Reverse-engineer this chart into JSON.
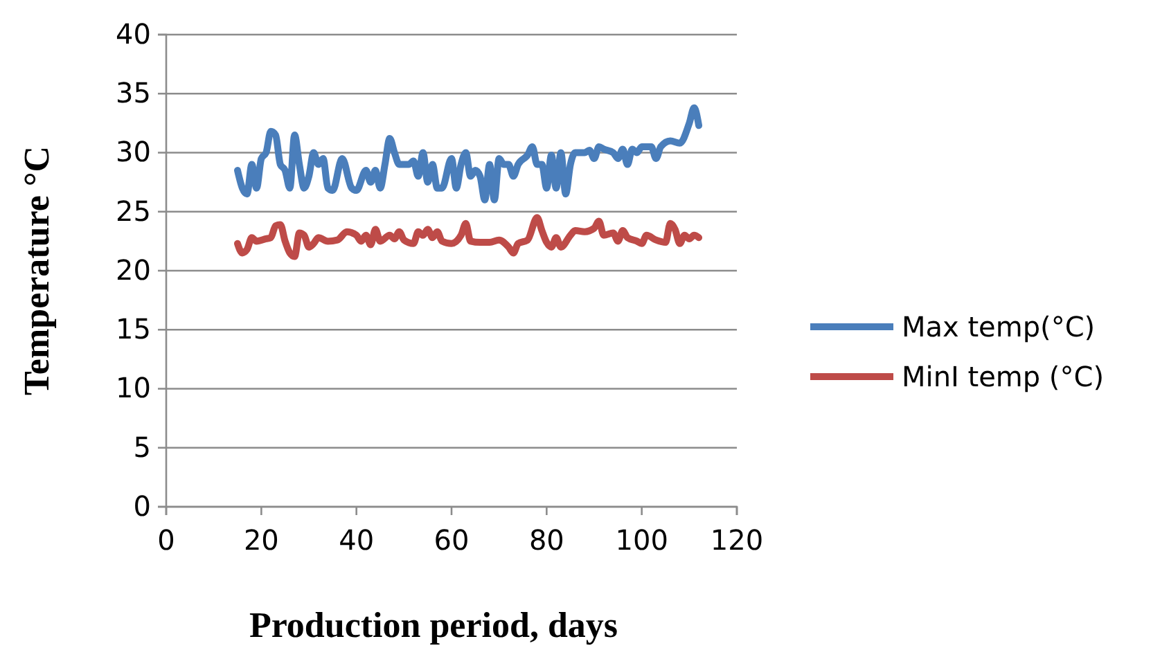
{
  "chart_data": {
    "type": "line",
    "xlabel": "Production period, days",
    "ylabel": "Temperature °C",
    "xlim": [
      0,
      120
    ],
    "xticks": [
      0,
      20,
      40,
      60,
      80,
      100,
      120
    ],
    "ylim": [
      0,
      40
    ],
    "yticks": [
      0,
      5,
      10,
      15,
      20,
      25,
      30,
      35,
      40
    ],
    "grid": "y",
    "legend": "right",
    "marker": "none",
    "line_style": "solid",
    "series": [
      {
        "name": "Max temp(°C)",
        "color": "#4a7ebb",
        "x": [
          15,
          16,
          17,
          18,
          19,
          20,
          21,
          22,
          23,
          24,
          25,
          26,
          27,
          28,
          29,
          30,
          31,
          32,
          33,
          34,
          35,
          37,
          39,
          40,
          42,
          43,
          44,
          45,
          46,
          47,
          48,
          49,
          51,
          52,
          53,
          54,
          55,
          56,
          57,
          58,
          60,
          61,
          62,
          63,
          64,
          65,
          66,
          67,
          68,
          69,
          70,
          71,
          72,
          73,
          74,
          76,
          77,
          78,
          79,
          80,
          81,
          82,
          83,
          84,
          85,
          86,
          88,
          89,
          90,
          91,
          92,
          94,
          95,
          96,
          97,
          98,
          99,
          100,
          102,
          103,
          104,
          106,
          108,
          110,
          111,
          112
        ],
        "values": [
          28.5,
          27,
          26.5,
          29,
          27,
          29.5,
          30,
          31.8,
          31.5,
          29,
          28.5,
          27,
          31.5,
          29,
          27,
          28,
          30,
          29,
          29.5,
          27,
          26.8,
          29.5,
          27,
          26.8,
          28.5,
          27.5,
          28.5,
          27,
          29,
          31.2,
          30,
          29,
          29,
          29.3,
          28,
          30,
          27.5,
          29,
          27,
          27,
          29.5,
          27,
          29,
          30,
          28,
          28.5,
          28,
          26,
          29,
          26,
          29.5,
          29,
          29,
          28,
          29,
          29.8,
          30.5,
          29,
          29,
          27,
          29.8,
          27,
          30,
          26.5,
          29,
          30,
          30,
          30.2,
          29.5,
          30.5,
          30.3,
          30,
          29.5,
          30.3,
          29,
          30.3,
          30,
          30.5,
          30.5,
          29.5,
          30.5,
          31,
          30.8,
          32.5,
          33.8,
          32.3
        ]
      },
      {
        "name": "MinI temp (°C)",
        "color": "#be4b48",
        "x": [
          15,
          16,
          17,
          18,
          19,
          21,
          22,
          23,
          24,
          25,
          26,
          27,
          28,
          29,
          30,
          31,
          32,
          34,
          36,
          38,
          40,
          41,
          42,
          43,
          44,
          45,
          47,
          48,
          49,
          50,
          52,
          53,
          54,
          55,
          56,
          57,
          58,
          60,
          62,
          63,
          64,
          66,
          68,
          70,
          72,
          73,
          74,
          76,
          78,
          79,
          80,
          81,
          82,
          83,
          85,
          86,
          88,
          90,
          91,
          92,
          94,
          95,
          96,
          97,
          99,
          100,
          101,
          103,
          105,
          106,
          107,
          108,
          109,
          110,
          111,
          112
        ],
        "values": [
          22.3,
          21.5,
          21.8,
          22.8,
          22.5,
          22.7,
          22.8,
          23.8,
          23.9,
          22.5,
          21.5,
          21.2,
          23.2,
          23,
          22,
          22.3,
          22.8,
          22.5,
          22.6,
          23.3,
          23,
          22.5,
          23,
          22.2,
          23.5,
          22.5,
          23,
          22.7,
          23.3,
          22.6,
          22.3,
          23.3,
          23,
          23.5,
          22.8,
          23.3,
          22.5,
          22.3,
          23,
          24,
          22.5,
          22.4,
          22.4,
          22.6,
          22,
          21.5,
          22.3,
          22.6,
          24.5,
          23.4,
          22.4,
          22,
          22.8,
          22,
          23,
          23.4,
          23.3,
          23.6,
          24.2,
          23,
          23.2,
          22.5,
          23.4,
          22.8,
          22.5,
          22.3,
          23,
          22.6,
          22.4,
          24,
          23.5,
          22.3,
          23,
          22.7,
          23,
          22.8
        ]
      }
    ]
  }
}
